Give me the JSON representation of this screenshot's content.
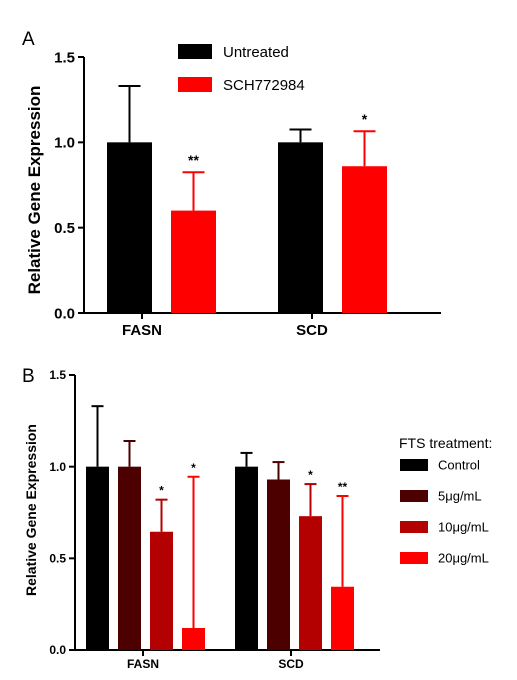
{
  "chart_data": [
    {
      "panel": "A",
      "type": "bar",
      "ylabel": "Relative Gene Expression",
      "ylim": [
        0,
        1.5
      ],
      "yticks": [
        "0.0",
        "0.5",
        "1.0",
        "1.5"
      ],
      "categories": [
        "FASN",
        "SCD"
      ],
      "legend_position": "top-center",
      "series": [
        {
          "name": "Untreated",
          "color": "#000000",
          "values": [
            1.0,
            1.0
          ],
          "error": [
            0.33,
            0.075
          ],
          "significance": [
            "",
            ""
          ]
        },
        {
          "name": "SCH772984",
          "color": "#ff0000",
          "values": [
            0.6,
            0.86
          ],
          "error": [
            0.225,
            0.205
          ],
          "significance": [
            "**",
            "*"
          ]
        }
      ]
    },
    {
      "panel": "B",
      "type": "bar",
      "ylabel": "Relative Gene Expression",
      "ylim": [
        0,
        1.5
      ],
      "yticks": [
        "0.0",
        "0.5",
        "1.0",
        "1.5"
      ],
      "categories": [
        "FASN",
        "SCD"
      ],
      "legend_title": "FTS treatment:",
      "legend_position": "right",
      "series": [
        {
          "name": "Control",
          "color": "#000000",
          "values": [
            1.0,
            1.0
          ],
          "error": [
            0.33,
            0.075
          ],
          "significance": [
            "",
            ""
          ]
        },
        {
          "name": "5μg/mL",
          "color": "#4d0000",
          "values": [
            1.0,
            0.93
          ],
          "error": [
            0.14,
            0.095
          ],
          "significance": [
            "",
            ""
          ]
        },
        {
          "name": "10μg/mL",
          "color": "#b30000",
          "values": [
            0.645,
            0.73
          ],
          "error": [
            0.175,
            0.175
          ],
          "significance": [
            "*",
            "*"
          ]
        },
        {
          "name": "20μg/mL",
          "color": "#ff0000",
          "values": [
            0.12,
            0.345
          ],
          "error": [
            0.825,
            0.495
          ],
          "significance": [
            "*",
            "**"
          ]
        }
      ]
    }
  ]
}
